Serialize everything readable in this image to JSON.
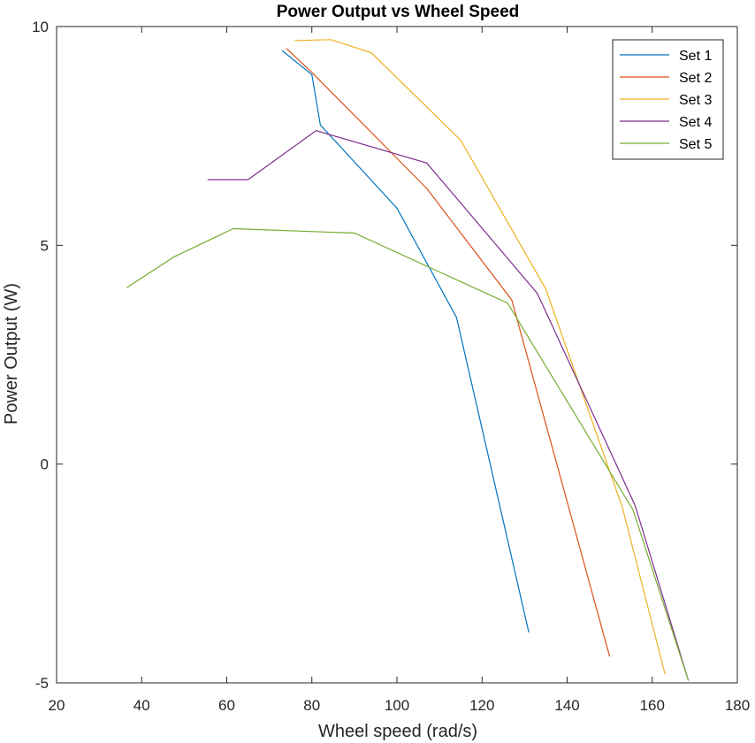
{
  "chart_data": {
    "type": "line",
    "title": "Power Output vs Wheel Speed",
    "xlabel": "Wheel speed (rad/s)",
    "ylabel": "Power Output (W)",
    "xlim": [
      20,
      180
    ],
    "ylim": [
      -5,
      10
    ],
    "xticks": [
      20,
      40,
      60,
      80,
      100,
      120,
      140,
      160,
      180
    ],
    "yticks": [
      -5,
      0,
      5,
      10
    ],
    "grid": false,
    "legend_position": "top-right",
    "series": [
      {
        "name": "Set 1",
        "color": "#0072BD",
        "x": [
          73,
          80,
          82,
          100,
          114,
          131
        ],
        "y": [
          9.45,
          8.9,
          7.75,
          5.85,
          3.35,
          -3.85
        ]
      },
      {
        "name": "Set 2",
        "color": "#D95319",
        "x": [
          74,
          80,
          107,
          127,
          150
        ],
        "y": [
          9.5,
          8.95,
          6.3,
          3.75,
          -4.4
        ]
      },
      {
        "name": "Set 3",
        "color": "#EDB120",
        "x": [
          76,
          84.5,
          94,
          115,
          135,
          153,
          163
        ],
        "y": [
          9.68,
          9.7,
          9.4,
          7.4,
          4.0,
          -1.0,
          -4.8
        ]
      },
      {
        "name": "Set 4",
        "color": "#7E2F8E",
        "x": [
          55.5,
          65,
          81,
          107,
          133,
          156,
          168.5
        ],
        "y": [
          6.5,
          6.5,
          7.62,
          6.88,
          3.9,
          -0.95,
          -4.95
        ]
      },
      {
        "name": "Set 5",
        "color": "#77AC30",
        "x": [
          36.5,
          47.5,
          61.5,
          90,
          126,
          155.5,
          168.5
        ],
        "y": [
          4.03,
          4.73,
          5.38,
          5.28,
          3.68,
          -1.05,
          -4.95
        ]
      }
    ]
  }
}
